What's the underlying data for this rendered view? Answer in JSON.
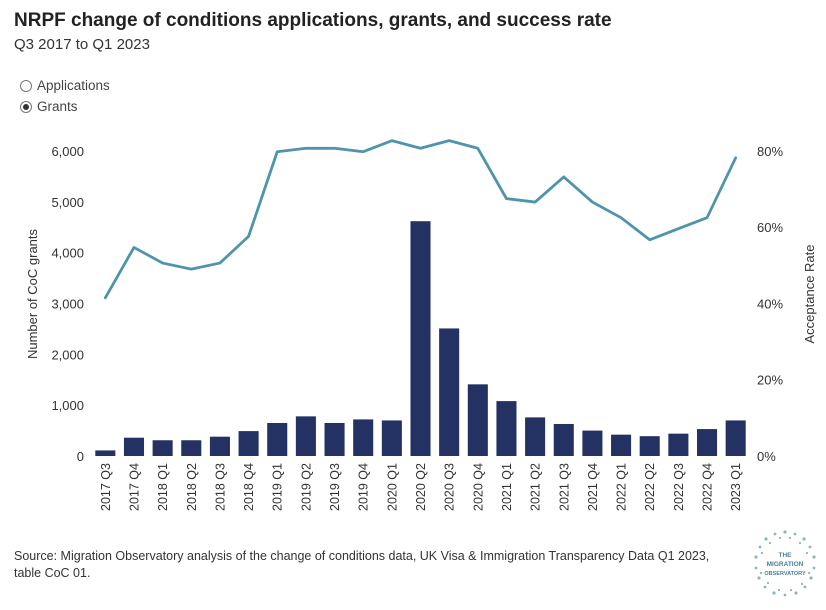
{
  "header": {
    "title": "NRPF change of conditions applications, grants, and success rate",
    "subtitle": "Q3 2017 to Q1 2023"
  },
  "toggle": {
    "options": [
      {
        "label": "Applications",
        "selected": false
      },
      {
        "label": "Grants",
        "selected": true
      }
    ]
  },
  "footer": {
    "source": "Source: Migration Observatory analysis of the change of conditions data, UK Visa & Immigration Transparency Data Q1 2023, table CoC 01.",
    "logo_text": [
      "THE",
      "MIGRATION",
      "OBSERVATORY"
    ]
  },
  "chart_data": {
    "type": "bar",
    "categories": [
      "2017 Q3",
      "2017 Q4",
      "2018 Q1",
      "2018 Q2",
      "2018 Q3",
      "2018 Q4",
      "2019 Q1",
      "2019 Q2",
      "2019 Q3",
      "2019 Q4",
      "2020 Q1",
      "2020 Q2",
      "2020 Q3",
      "2020 Q4",
      "2021 Q1",
      "2021 Q2",
      "2021 Q3",
      "2021 Q4",
      "2022 Q1",
      "2022 Q2",
      "2022 Q3",
      "2022 Q4",
      "2023 Q1"
    ],
    "series": [
      {
        "type": "bar",
        "axis": "left",
        "color": "#233263",
        "values": [
          110,
          360,
          310,
          310,
          380,
          490,
          650,
          780,
          650,
          720,
          700,
          4620,
          2510,
          1410,
          1080,
          760,
          630,
          500,
          420,
          390,
          440,
          530,
          700
        ]
      },
      {
        "type": "line",
        "axis": "right",
        "color": "#4f93ad",
        "values": [
          41.5,
          54.7,
          50.6,
          49.0,
          50.6,
          57.6,
          79.8,
          80.7,
          80.7,
          79.8,
          82.7,
          80.7,
          82.7,
          80.7,
          67.5,
          66.6,
          73.2,
          66.6,
          62.5,
          56.7,
          59.6,
          62.5,
          78.2
        ]
      }
    ],
    "y_left": {
      "label": "Number of CoC grants",
      "ticks": [
        0,
        1000,
        2000,
        3000,
        4000,
        5000,
        6000
      ],
      "tick_labels": [
        "0",
        "1,000",
        "2,000",
        "3,000",
        "4,000",
        "5,000",
        "6,000"
      ],
      "range": [
        0,
        6100
      ]
    },
    "y_right": {
      "label": "Acceptance Rate",
      "ticks": [
        0,
        20,
        40,
        60,
        80
      ],
      "tick_labels": [
        "0%",
        "20%",
        "40%",
        "60%",
        "80%"
      ],
      "range": [
        0,
        81.3
      ]
    },
    "grid": false,
    "legend": "none"
  }
}
